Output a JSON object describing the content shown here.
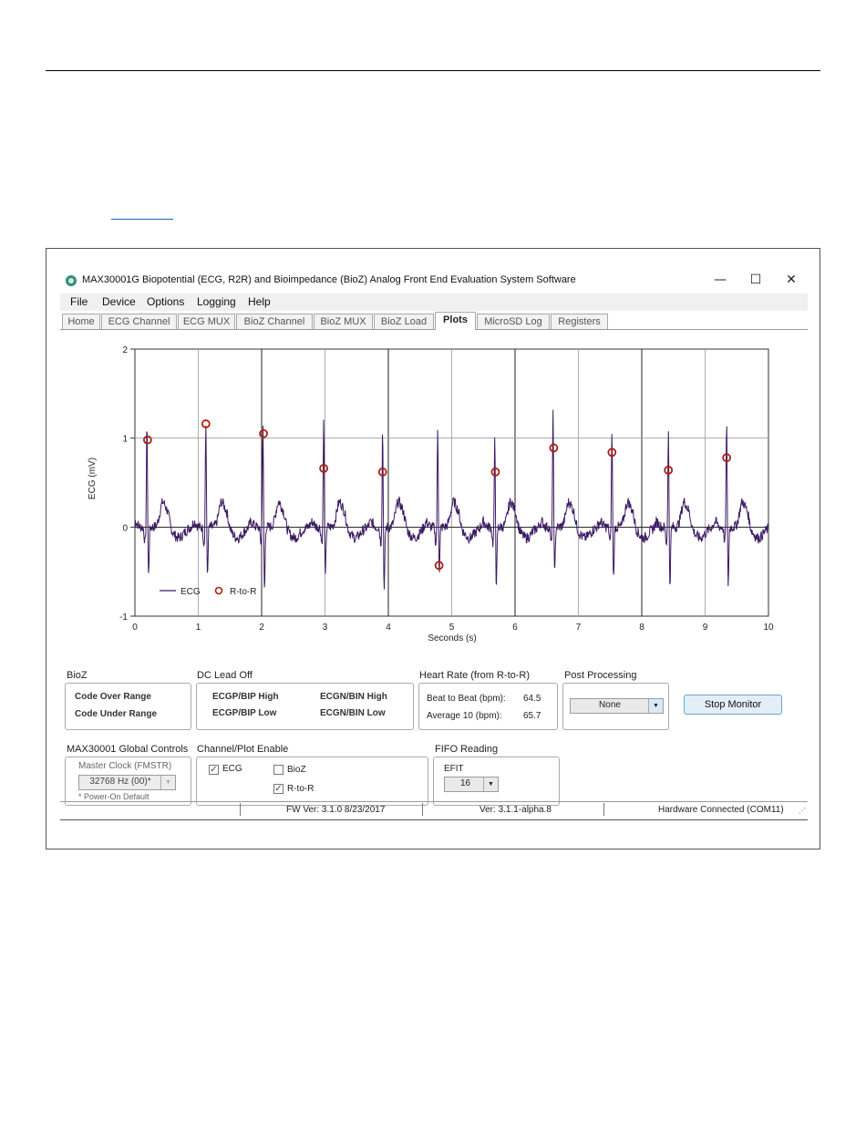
{
  "window": {
    "title": "MAX30001G Biopotential (ECG, R2R) and Bioimpedance (BioZ) Analog Front End Evaluation System Software",
    "minimize": "—",
    "maximize": "☐",
    "close": "✕"
  },
  "menu": [
    "File",
    "Device",
    "Options",
    "Logging",
    "Help"
  ],
  "tabs": [
    "Home",
    "ECG Channel",
    "ECG MUX",
    "BioZ Channel",
    "BioZ MUX",
    "BioZ Load",
    "Plots",
    "MicroSD Log",
    "Registers"
  ],
  "active_tab": "Plots",
  "chart_data": {
    "type": "line",
    "xlabel": "Seconds (s)",
    "ylabel": "ECG (mV)",
    "xlim": [
      0,
      10
    ],
    "ylim": [
      -1,
      2
    ],
    "x_ticks": [
      "0",
      "1",
      "2",
      "3",
      "4",
      "5",
      "6",
      "7",
      "8",
      "9",
      "10"
    ],
    "y_ticks": [
      "-1",
      "0",
      "1",
      "2"
    ],
    "grid": true,
    "legend": {
      "placement": "bottom-left",
      "ecg": "ECG",
      "rtor": "R-to-R"
    },
    "colors": {
      "ecg": "#3b1a63",
      "rtor": "#b01e0e"
    },
    "r_peaks": [
      {
        "t": 0.19,
        "amp": 1.2,
        "dip": -0.55
      },
      {
        "t": 1.12,
        "amp": 1.2,
        "dip": -0.55
      },
      {
        "t": 2.02,
        "amp": 1.2,
        "dip": -0.72
      },
      {
        "t": 2.98,
        "amp": 1.22,
        "dip": -0.58
      },
      {
        "t": 3.91,
        "amp": 1.12,
        "dip": -0.72
      },
      {
        "t": 4.78,
        "amp": 1.12,
        "dip": -0.5
      },
      {
        "t": 5.68,
        "amp": 1.0,
        "dip": -0.72
      },
      {
        "t": 6.6,
        "amp": 1.28,
        "dip": -0.55
      },
      {
        "t": 7.53,
        "amp": 1.1,
        "dip": -0.58
      },
      {
        "t": 8.42,
        "amp": 1.1,
        "dip": -0.65
      },
      {
        "t": 9.34,
        "amp": 1.22,
        "dip": -0.65
      }
    ],
    "series": [
      {
        "name": "R-to-R",
        "points": [
          {
            "x": 0.2,
            "y": 0.98
          },
          {
            "x": 1.12,
            "y": 1.16
          },
          {
            "x": 2.03,
            "y": 1.05
          },
          {
            "x": 2.98,
            "y": 0.66
          },
          {
            "x": 3.91,
            "y": 0.62
          },
          {
            "x": 4.8,
            "y": -0.43
          },
          {
            "x": 5.69,
            "y": 0.62
          },
          {
            "x": 6.61,
            "y": 0.89
          },
          {
            "x": 7.53,
            "y": 0.84
          },
          {
            "x": 8.42,
            "y": 0.64
          },
          {
            "x": 9.34,
            "y": 0.78
          }
        ]
      }
    ]
  },
  "bioz": {
    "title": "BioZ",
    "over": "Code Over Range",
    "under": "Code Under Range"
  },
  "dc_lead_off": {
    "title": "DC Lead Off",
    "ecgp_high": "ECGP/BIP High",
    "ecgn_high": "ECGN/BIN High",
    "ecgp_low": "ECGP/BIP Low",
    "ecgn_low": "ECGN/BIN Low"
  },
  "heart_rate": {
    "title": "Heart Rate (from R-to-R)",
    "beat_label": "Beat to Beat (bpm):",
    "beat_value": "64.5",
    "avg_label": "Average 10 (bpm):",
    "avg_value": "65.7"
  },
  "post_processing": {
    "title": "Post Processing",
    "value": "None"
  },
  "stop_button": "Stop Monitor",
  "global_controls": {
    "title": "MAX30001 Global Controls",
    "master_clock_label": "Master Clock (FMSTR)",
    "master_clock_value": "32768 Hz (00)*",
    "note": "* Power-On Default"
  },
  "channel_enable": {
    "title": "Channel/Plot Enable",
    "ecg": "ECG",
    "ecg_checked": true,
    "bioz": "BioZ",
    "bioz_checked": false,
    "rtor": "R-to-R",
    "rtor_checked": true
  },
  "fifo": {
    "title": "FIFO Reading",
    "efit_label": "EFIT",
    "efit_value": "16"
  },
  "status": {
    "fw": "FW Ver: 3.1.0 8/23/2017",
    "ver": "Ver: 3.1.1-alpha.8",
    "hw": "Hardware Connected (COM11)"
  }
}
